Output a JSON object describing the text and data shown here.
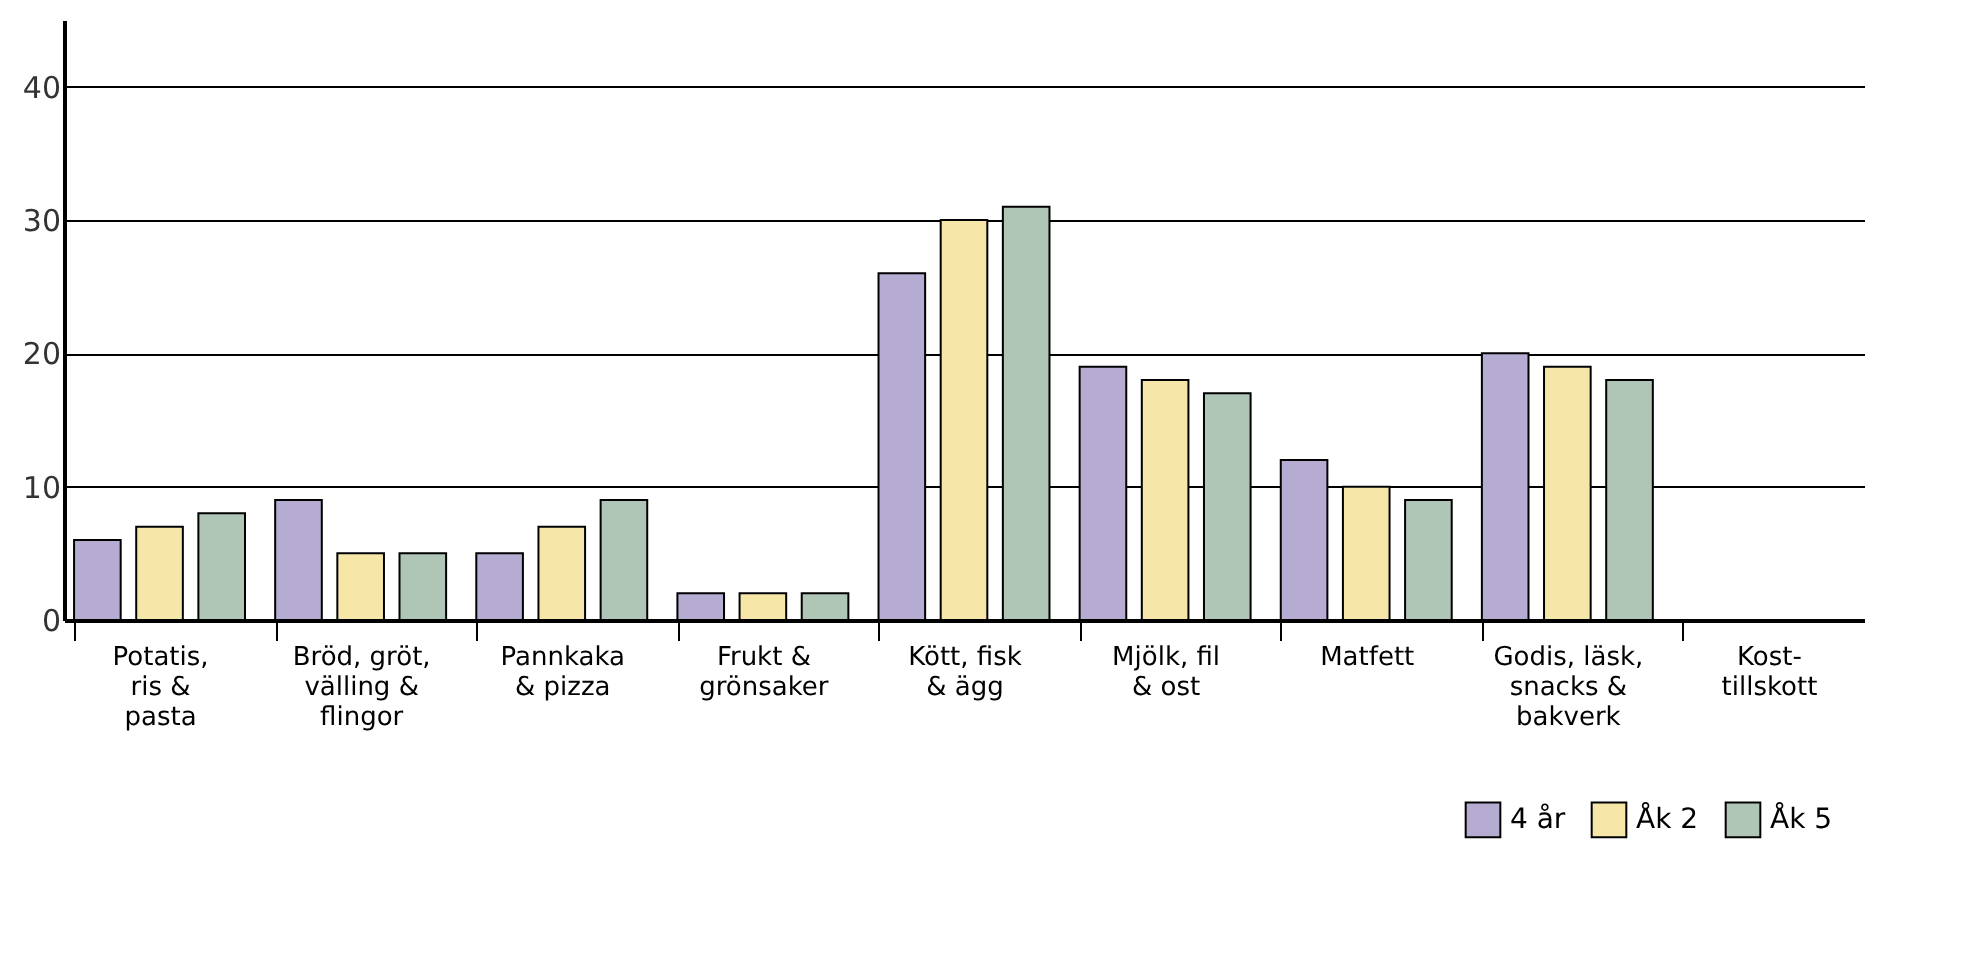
{
  "chart_data": {
    "type": "bar",
    "categories": [
      "Potatis,\nris &\npasta",
      "Bröd, gröt,\nvälling &\nflingor",
      "Pannkaka\n& pizza",
      "Frukt &\ngrönsaker",
      "Kött, fisk\n& ägg",
      "Mjölk, fil\n& ost",
      "Matfett",
      "Godis, läsk,\nsnacks &\nbakverk",
      "Kost-\ntillskott"
    ],
    "series": [
      {
        "name": "4 år",
        "color": "#b6abd0",
        "values": [
          6,
          9,
          5,
          2,
          26,
          19,
          12,
          20,
          null
        ]
      },
      {
        "name": "Åk 2",
        "color": "#f6e7a9",
        "values": [
          7,
          5,
          7,
          2,
          30,
          18,
          10,
          19,
          null
        ]
      },
      {
        "name": "Åk 5",
        "color": "#afc5b6",
        "values": [
          8,
          5,
          9,
          2,
          31,
          17,
          9,
          18,
          null
        ]
      }
    ],
    "ylim": [
      0,
      45
    ],
    "yticks": [
      0,
      10,
      20,
      30,
      40
    ],
    "grid": "y",
    "legend": "bottom right"
  }
}
